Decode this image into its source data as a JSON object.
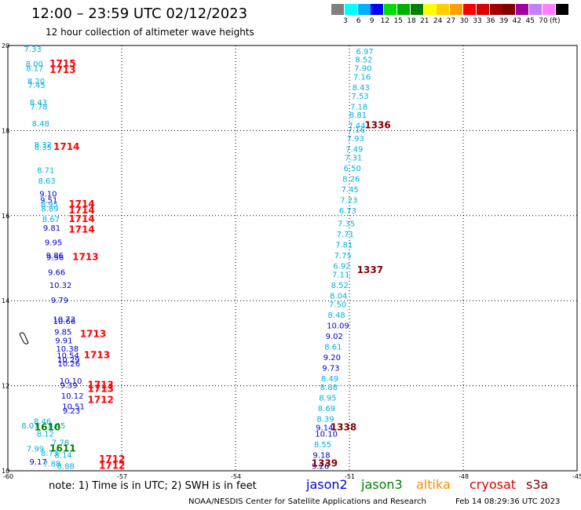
{
  "header": {
    "title": "12:00 – 23:59 UTC 02/12/2023",
    "subtitle": "12 hour collection of altimeter wave heights"
  },
  "colorbar": {
    "unit": "(ft)",
    "colors": [
      "#7f7f7f",
      "#00ffff",
      "#00b0ff",
      "#0000ff",
      "#00dd00",
      "#00b000",
      "#008000",
      "#ffff00",
      "#ffd000",
      "#ffa000",
      "#ff0000",
      "#dd0000",
      "#a00000",
      "#800000",
      "#a000a0",
      "#c080ff",
      "#ff80ff",
      "#000000"
    ],
    "labels": [
      "3",
      "6",
      "9",
      "12",
      "15",
      "18",
      "21",
      "24",
      "27",
      "30",
      "33",
      "36",
      "39",
      "42",
      "45",
      "70"
    ]
  },
  "map": {
    "lon_range": [
      -60,
      -45
    ],
    "lat_range": [
      10,
      20
    ],
    "lon_ticks": [
      "-60",
      "-57",
      "-54",
      "-51",
      "-48",
      "-45"
    ],
    "lat_ticks": [
      "20",
      "18",
      "16",
      "14",
      "12",
      "10"
    ],
    "grid": "dotted"
  },
  "tracks": [
    {
      "satellite": "cryosat",
      "time": "1715",
      "labels": [
        {
          "v": "7.33",
          "lat": 19.85
        },
        {
          "v": "8.00",
          "lat": 19.5
        },
        {
          "v": "8.17",
          "lat": 19.4
        },
        {
          "v": "8.20",
          "lat": 19.1
        },
        {
          "v": "7.45",
          "lat": 19.0
        },
        {
          "v": "8.43",
          "lat": 18.6
        },
        {
          "v": "7.78",
          "lat": 18.5
        },
        {
          "v": "8.48",
          "lat": 18.1
        },
        {
          "v": "8.32",
          "lat": 17.6
        },
        {
          "v": "8.35",
          "lat": 17.55
        },
        {
          "v": "8.71",
          "lat": 17.0
        },
        {
          "v": "8.63",
          "lat": 16.75
        },
        {
          "v": "9.10",
          "lat": 16.45
        },
        {
          "v": "9.51",
          "lat": 16.3
        },
        {
          "v": "8.95",
          "lat": 16.2
        },
        {
          "v": "8.89",
          "lat": 16.1
        },
        {
          "v": "8.67",
          "lat": 15.85
        },
        {
          "v": "9.81",
          "lat": 15.65
        },
        {
          "v": "9.95",
          "lat": 15.3
        },
        {
          "v": "9.86",
          "lat": 15.0
        },
        {
          "v": "9.56",
          "lat": 14.95
        },
        {
          "v": "9.66",
          "lat": 14.6
        },
        {
          "v": "10.32",
          "lat": 14.3
        },
        {
          "v": "9.79",
          "lat": 13.95
        },
        {
          "v": "10.73",
          "lat": 13.5
        },
        {
          "v": "10.66",
          "lat": 13.45
        },
        {
          "v": "9.85",
          "lat": 13.2
        },
        {
          "v": "9.91",
          "lat": 13.0
        },
        {
          "v": "10.38",
          "lat": 12.8
        },
        {
          "v": "10.54",
          "lat": 12.65
        },
        {
          "v": "10.29",
          "lat": 12.55
        },
        {
          "v": "10.26",
          "lat": 12.45
        },
        {
          "v": "10.10",
          "lat": 12.05
        },
        {
          "v": "9.39",
          "lat": 11.95
        },
        {
          "v": "10.12",
          "lat": 11.7
        },
        {
          "v": "10.51",
          "lat": 11.45
        },
        {
          "v": "9.23",
          "lat": 11.35
        },
        {
          "v": "8.46",
          "lat": 11.1
        },
        {
          "v": "8.45",
          "lat": 11.0
        },
        {
          "v": "8.07",
          "lat": 11.0
        },
        {
          "v": "8.12",
          "lat": 10.8
        },
        {
          "v": "7.78",
          "lat": 10.6
        },
        {
          "v": "7.99",
          "lat": 10.45
        },
        {
          "v": "8.73",
          "lat": 10.35
        },
        {
          "v": "8.14",
          "lat": 10.3
        },
        {
          "v": "9.17",
          "lat": 10.15
        },
        {
          "v": "7.88",
          "lat": 10.1
        },
        {
          "v": "8.88",
          "lat": 10.05
        }
      ]
    },
    {
      "satellite": "cryosat",
      "time": "1713",
      "labels": [
        {
          "v": "6.97",
          "lat": 19.8
        },
        {
          "v": "8.52",
          "lat": 19.6
        },
        {
          "v": "7.90",
          "lat": 19.4
        },
        {
          "v": "7.16",
          "lat": 19.2
        },
        {
          "v": "8.43",
          "lat": 18.95
        },
        {
          "v": "7.53",
          "lat": 18.75
        },
        {
          "v": "7.18",
          "lat": 18.5
        },
        {
          "v": "8.81",
          "lat": 18.3
        },
        {
          "v": "7.44",
          "lat": 18.05
        },
        {
          "v": "7.16",
          "lat": 17.95
        },
        {
          "v": "7.93",
          "lat": 17.75
        },
        {
          "v": "7.49",
          "lat": 17.5
        },
        {
          "v": "7.31",
          "lat": 17.3
        },
        {
          "v": "6.50",
          "lat": 17.05
        },
        {
          "v": "8.26",
          "lat": 16.8
        },
        {
          "v": "7.45",
          "lat": 16.55
        },
        {
          "v": "7.23",
          "lat": 16.3
        },
        {
          "v": "6.73",
          "lat": 16.05
        },
        {
          "v": "7.35",
          "lat": 15.75
        },
        {
          "v": "7.71",
          "lat": 15.5
        },
        {
          "v": "7.81",
          "lat": 15.25
        },
        {
          "v": "7.75",
          "lat": 15.0
        },
        {
          "v": "6.92",
          "lat": 14.75
        },
        {
          "v": "7.11",
          "lat": 14.55
        },
        {
          "v": "8.52",
          "lat": 14.3
        },
        {
          "v": "8.04",
          "lat": 14.05
        },
        {
          "v": "7.50",
          "lat": 13.85
        },
        {
          "v": "8.48",
          "lat": 13.6
        },
        {
          "v": "10.09",
          "lat": 13.35
        },
        {
          "v": "9.02",
          "lat": 13.1
        },
        {
          "v": "8.61",
          "lat": 12.85
        },
        {
          "v": "9.20",
          "lat": 12.6
        },
        {
          "v": "9.73",
          "lat": 12.35
        },
        {
          "v": "8.49",
          "lat": 12.1
        },
        {
          "v": "8.88",
          "lat": 11.9
        },
        {
          "v": "8.95",
          "lat": 11.65
        },
        {
          "v": "8.69",
          "lat": 11.4
        },
        {
          "v": "8.39",
          "lat": 11.15
        },
        {
          "v": "9.14",
          "lat": 10.95
        },
        {
          "v": "10.10",
          "lat": 10.8
        },
        {
          "v": "8.55",
          "lat": 10.55
        },
        {
          "v": "9.18",
          "lat": 10.3
        },
        {
          "v": "9.26",
          "lat": 10.05
        }
      ]
    }
  ],
  "time_labels": [
    {
      "t": "1715",
      "lon": -58.9,
      "lat": 19.5,
      "color": "#ff0000"
    },
    {
      "t": "1713",
      "lon": -58.9,
      "lat": 19.35,
      "color": "#ff0000"
    },
    {
      "t": "1714",
      "lon": -58.8,
      "lat": 17.55,
      "color": "#ff0000"
    },
    {
      "t": "1714",
      "lon": -58.4,
      "lat": 16.2,
      "color": "#ff0000"
    },
    {
      "t": "1714",
      "lon": -58.4,
      "lat": 16.05,
      "color": "#ff0000"
    },
    {
      "t": "1714",
      "lon": -58.4,
      "lat": 15.85,
      "color": "#ff0000"
    },
    {
      "t": "1714",
      "lon": -58.4,
      "lat": 15.6,
      "color": "#ff0000"
    },
    {
      "t": "1713",
      "lon": -58.3,
      "lat": 14.95,
      "color": "#ff0000"
    },
    {
      "t": "1713",
      "lon": -58.1,
      "lat": 13.15,
      "color": "#ff0000"
    },
    {
      "t": "1713",
      "lon": -58.0,
      "lat": 12.65,
      "color": "#ff0000"
    },
    {
      "t": "1713",
      "lon": -57.9,
      "lat": 11.95,
      "color": "#ff0000"
    },
    {
      "t": "1713",
      "lon": -57.9,
      "lat": 11.85,
      "color": "#ff0000"
    },
    {
      "t": "1712",
      "lon": -57.9,
      "lat": 11.6,
      "color": "#ff0000"
    },
    {
      "t": "1712",
      "lon": -57.6,
      "lat": 10.2,
      "color": "#ff0000"
    },
    {
      "t": "1712",
      "lon": -57.6,
      "lat": 10.05,
      "color": "#ff0000"
    },
    {
      "t": "1610",
      "lon": -59.3,
      "lat": 10.95,
      "color": "#008000"
    },
    {
      "t": "1611",
      "lon": -58.9,
      "lat": 10.45,
      "color": "#008000"
    },
    {
      "t": "1336",
      "lon": -50.6,
      "lat": 18.05,
      "color": "#800000"
    },
    {
      "t": "1337",
      "lon": -50.8,
      "lat": 14.65,
      "color": "#800000"
    },
    {
      "t": "1338",
      "lon": -51.5,
      "lat": 10.95,
      "color": "#800000"
    },
    {
      "t": "1339",
      "lon": -52.0,
      "lat": 10.1,
      "color": "#800000"
    }
  ],
  "footnote": "note:  1) Time is in UTC;  2) SWH is in feet",
  "satellites": [
    {
      "name": "jason2",
      "color": "#0000dd"
    },
    {
      "name": "jason3",
      "color": "#008000"
    },
    {
      "name": "altika",
      "color": "#ff8c00"
    },
    {
      "name": "cryosat",
      "color": "#dd0000"
    },
    {
      "name": "s3a",
      "color": "#800000"
    }
  ],
  "credit": "NOAA/NESDIS Center for Satellite Applications and Research",
  "timestamp": "Feb 14 08:29:36 UTC 2023"
}
